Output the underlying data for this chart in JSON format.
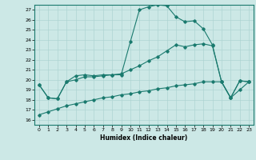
{
  "xlabel": "Humidex (Indice chaleur)",
  "ylabel": "",
  "xlim": [
    -0.5,
    23.5
  ],
  "ylim": [
    15.5,
    27.5
  ],
  "yticks": [
    16,
    17,
    18,
    19,
    20,
    21,
    22,
    23,
    24,
    25,
    26,
    27
  ],
  "xticks": [
    0,
    1,
    2,
    3,
    4,
    5,
    6,
    7,
    8,
    9,
    10,
    11,
    12,
    13,
    14,
    15,
    16,
    17,
    18,
    19,
    20,
    21,
    22,
    23
  ],
  "background_color": "#cce8e6",
  "grid_color": "#aed4d2",
  "line_color": "#1a7a6e",
  "series": [
    [
      19.5,
      18.2,
      18.1,
      19.8,
      20.4,
      20.5,
      20.4,
      20.5,
      20.5,
      20.5,
      23.8,
      27.0,
      27.3,
      27.5,
      27.4,
      26.3,
      25.8,
      25.9,
      25.1,
      23.5,
      19.8,
      18.2,
      19.9,
      19.8
    ],
    [
      19.5,
      18.2,
      18.1,
      19.8,
      20.0,
      20.3,
      20.3,
      20.4,
      20.5,
      20.6,
      21.0,
      21.4,
      21.9,
      22.3,
      22.9,
      23.5,
      23.3,
      23.5,
      23.6,
      23.4,
      19.8,
      18.2,
      19.9,
      19.8
    ],
    [
      16.5,
      16.8,
      17.1,
      17.4,
      17.6,
      17.8,
      18.0,
      18.2,
      18.3,
      18.5,
      18.6,
      18.8,
      18.9,
      19.1,
      19.2,
      19.4,
      19.5,
      19.6,
      19.8,
      19.8,
      19.8,
      18.2,
      19.0,
      19.8
    ]
  ]
}
